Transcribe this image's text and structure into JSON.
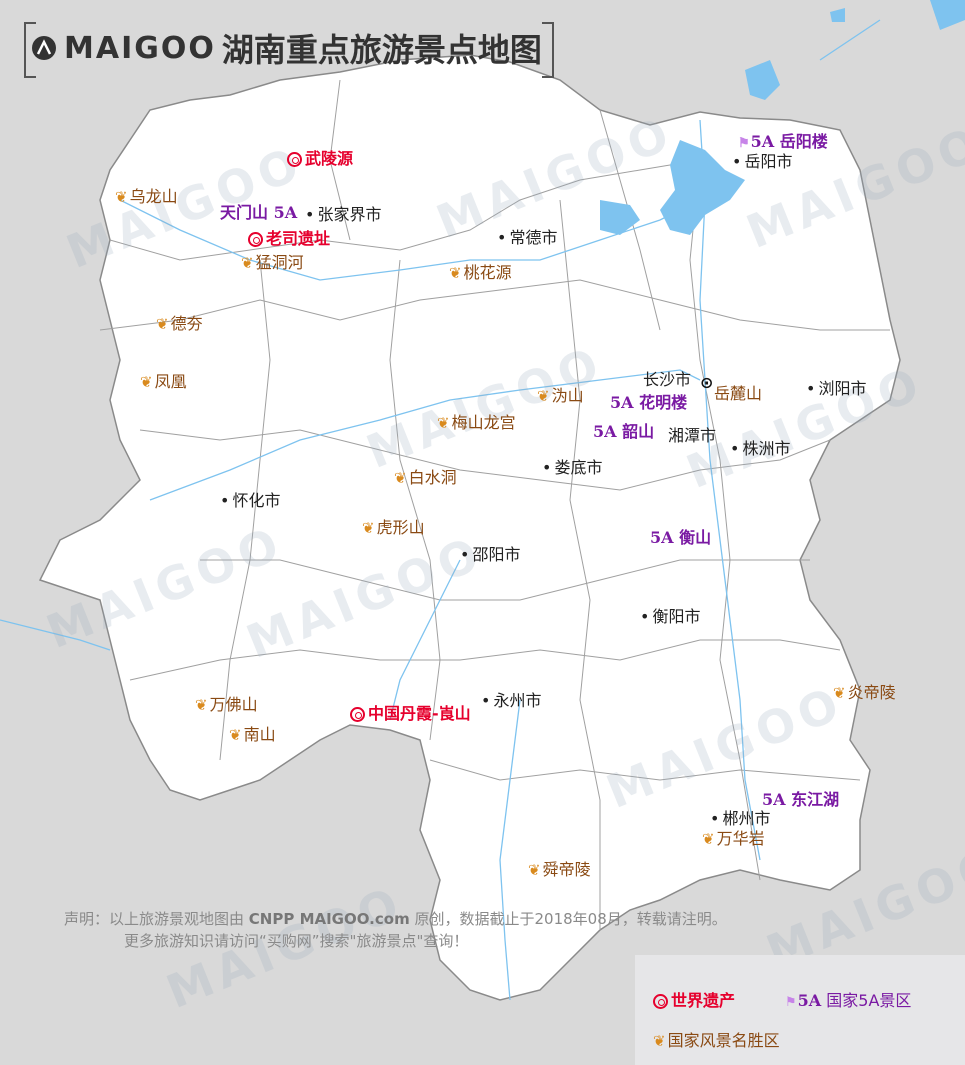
{
  "title": {
    "logo": "MAIGOO",
    "text": "湖南重点旅游景点地图"
  },
  "colors": {
    "land": "#ffffff",
    "outside": "#d9d9d9",
    "water": "#7ec3ef",
    "city_text": "#222222",
    "scenic_text": "#8a4a13",
    "leaf": "#d98a1e",
    "five_a": "#7a1aa3",
    "heritage": "#e6002d"
  },
  "cities": [
    "张家界市",
    "常德市",
    "岳阳市",
    "长沙市",
    "浏阳市",
    "湘潭市",
    "株洲市",
    "娄底市",
    "怀化市",
    "邵阳市",
    "衡阳市",
    "永州市",
    "郴州市"
  ],
  "heritage_sites": [
    "武陵源",
    "老司遗址",
    "中国丹霞-崀山"
  ],
  "five_a_sites": [
    "天门山",
    "岳阳楼",
    "花明楼",
    "韶山",
    "衡山",
    "东江湖"
  ],
  "five_a_badge": "5A",
  "scenic_areas": [
    "乌龙山",
    "猛洞河",
    "桃花源",
    "德夯",
    "凤凰",
    "沩山",
    "岳麓山",
    "梅山龙宫",
    "白水洞",
    "虎形山",
    "炎帝陵",
    "万佛山",
    "南山",
    "万华岩",
    "舜帝陵"
  ],
  "note": {
    "line1_prefix": "声明：以上旅游景观地图由",
    "line1_brands": "CNPP  MAIGOO.com",
    "line1_suffix": "原创，数据截止于2018年08月，转载请注明。",
    "line2": "更多旅游知识请访问“买购网”搜索\"旅游景点\"查询！"
  },
  "legend": {
    "heritage": "世界遗产",
    "five_a": "国家5A景区",
    "scenic": "国家风景名胜区"
  },
  "watermark": "MAIGOO"
}
